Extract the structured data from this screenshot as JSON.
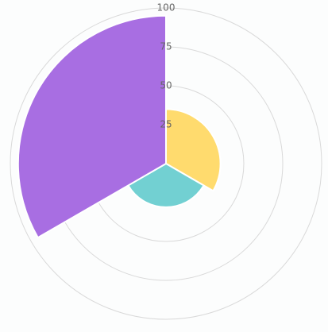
{
  "chart_data": {
    "type": "polarArea",
    "values": [
      35,
      28,
      95
    ],
    "colors": [
      "#ffdb6e",
      "#72d0d2",
      "#a86ee2"
    ],
    "ylim": [
      0,
      100
    ],
    "yticks": [
      25,
      50,
      75,
      100
    ],
    "grid": true
  }
}
